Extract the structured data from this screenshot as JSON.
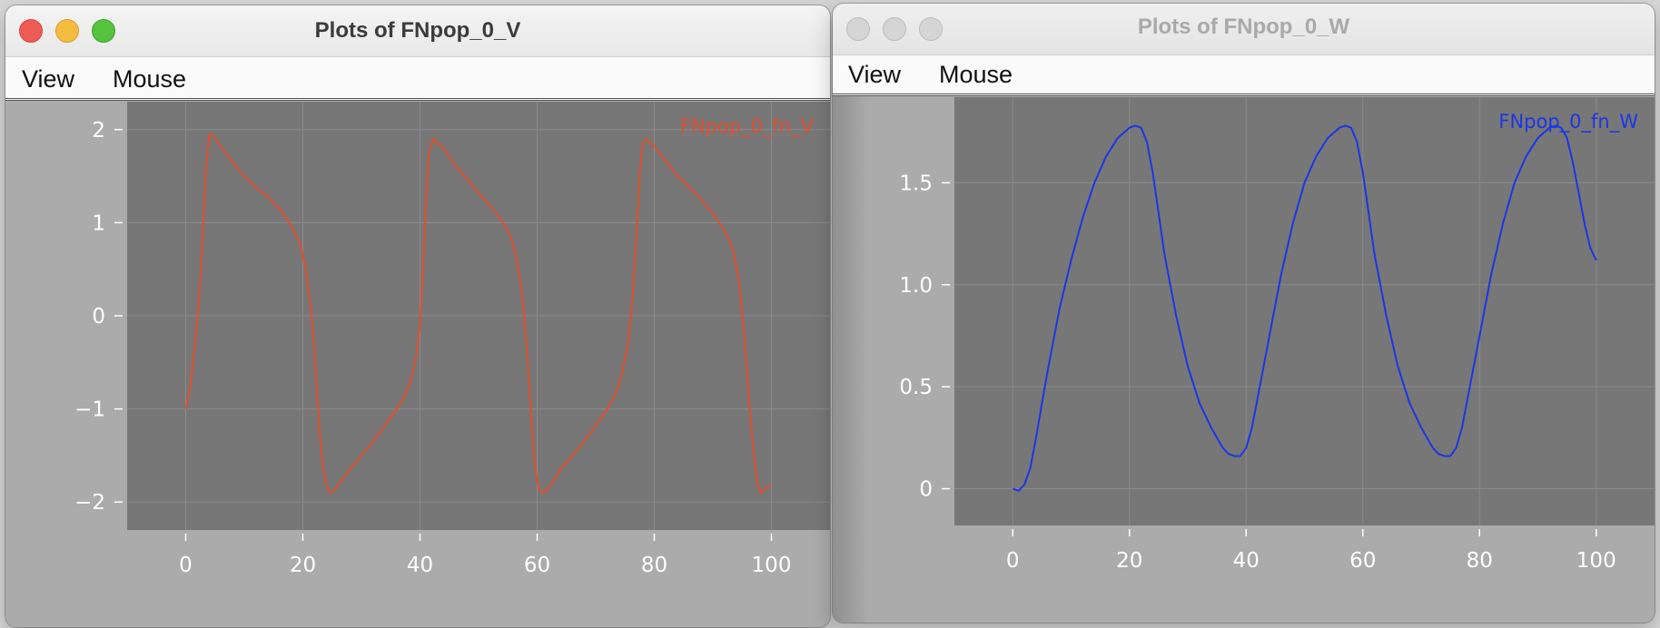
{
  "windows": [
    {
      "title": "Plots of FNpop_0_V",
      "active": true,
      "menu": [
        "View",
        "Mouse"
      ]
    },
    {
      "title": "Plots of FNpop_0_W",
      "active": false,
      "menu": [
        "View",
        "Mouse"
      ]
    }
  ],
  "colors": {
    "plot_bg": "#777777",
    "grid": "#8a8a8a",
    "axis_text": "#ffffff",
    "series_v": "#e0502f",
    "series_w": "#1a36e6"
  },
  "chart_data": [
    {
      "type": "line",
      "title": "",
      "xlabel": "",
      "ylabel": "",
      "xlim": [
        -10,
        110
      ],
      "ylim": [
        -2.3,
        2.3
      ],
      "xticks": [
        "0",
        "20",
        "40",
        "60",
        "80",
        "100"
      ],
      "xtick_values": [
        0,
        20,
        40,
        60,
        80,
        100
      ],
      "yticks": [
        "2",
        "1",
        "0",
        "−1",
        "−2"
      ],
      "ytick_values": [
        2,
        1,
        0,
        -1,
        -2
      ],
      "grid": true,
      "legend": "top-right",
      "series": [
        {
          "name": "FNpop_0_fn_V",
          "color": "#e0502f",
          "x": [
            0,
            0.8,
            1.6,
            2.4,
            3.0,
            3.5,
            4.0,
            4.6,
            6,
            8,
            10,
            12,
            14,
            16,
            18,
            19.5,
            20.5,
            21.5,
            22.2,
            22.8,
            23.4,
            24.0,
            24.6,
            25.3,
            26,
            28,
            30,
            32,
            34,
            36,
            37.5,
            38.5,
            39.3,
            40.0,
            40.5,
            41.0,
            41.5,
            42.3,
            44,
            46,
            48,
            50,
            52,
            54,
            55.5,
            56.5,
            57.5,
            58.3,
            59.0,
            59.6,
            60.2,
            60.8,
            61.5,
            62.3,
            64,
            66,
            68,
            70,
            72,
            73.5,
            74.5,
            75.5,
            76.3,
            77.0,
            77.5,
            78.0,
            78.6,
            80,
            82,
            84,
            86,
            88,
            90,
            92,
            93.5,
            94.5,
            95.5,
            96.3,
            97.0,
            97.6,
            98.2,
            99.0,
            100
          ],
          "y": [
            -1.0,
            -0.75,
            -0.3,
            0.3,
            1.0,
            1.6,
            1.95,
            1.94,
            1.82,
            1.65,
            1.5,
            1.38,
            1.28,
            1.15,
            0.97,
            0.78,
            0.5,
            0.0,
            -0.6,
            -1.2,
            -1.6,
            -1.82,
            -1.9,
            -1.88,
            -1.82,
            -1.65,
            -1.5,
            -1.35,
            -1.18,
            -1.0,
            -0.85,
            -0.68,
            -0.45,
            -0.1,
            0.5,
            1.2,
            1.75,
            1.9,
            1.8,
            1.62,
            1.47,
            1.32,
            1.18,
            1.02,
            0.85,
            0.62,
            0.2,
            -0.4,
            -1.1,
            -1.6,
            -1.85,
            -1.9,
            -1.88,
            -1.82,
            -1.65,
            -1.5,
            -1.35,
            -1.18,
            -1.0,
            -0.82,
            -0.62,
            -0.3,
            0.2,
            0.9,
            1.5,
            1.85,
            1.9,
            1.82,
            1.66,
            1.5,
            1.38,
            1.25,
            1.1,
            0.92,
            0.7,
            0.35,
            -0.3,
            -1.0,
            -1.5,
            -1.8,
            -1.9,
            -1.85,
            -1.82
          ]
        }
      ]
    },
    {
      "type": "line",
      "title": "",
      "xlabel": "",
      "ylabel": "",
      "xlim": [
        -10,
        110
      ],
      "ylim": [
        -0.18,
        1.92
      ],
      "xticks": [
        "0",
        "20",
        "40",
        "60",
        "80",
        "100"
      ],
      "xtick_values": [
        0,
        20,
        40,
        60,
        80,
        100
      ],
      "yticks": [
        "1.5",
        "1.0",
        "0.5",
        "0"
      ],
      "ytick_values": [
        1.5,
        1.0,
        0.5,
        0
      ],
      "grid": true,
      "legend": "top-right",
      "series": [
        {
          "name": "FNpop_0_fn_W",
          "color": "#1a36e6",
          "x": [
            0,
            1,
            2,
            3,
            4,
            5,
            6,
            8,
            10,
            12,
            14,
            16,
            18,
            20,
            21,
            22,
            23,
            24,
            25,
            26,
            28,
            30,
            32,
            34,
            36,
            37,
            38,
            39,
            40,
            41,
            42,
            44,
            46,
            48,
            50,
            52,
            54,
            56,
            57,
            58,
            59,
            60,
            61,
            62,
            64,
            66,
            68,
            70,
            72,
            73,
            74,
            75,
            76,
            77,
            78,
            80,
            82,
            84,
            86,
            88,
            90,
            92,
            93,
            94,
            95,
            96,
            97,
            98,
            99,
            100
          ],
          "y": [
            0.0,
            -0.01,
            0.02,
            0.1,
            0.25,
            0.42,
            0.58,
            0.88,
            1.12,
            1.33,
            1.5,
            1.63,
            1.72,
            1.77,
            1.78,
            1.77,
            1.7,
            1.55,
            1.35,
            1.15,
            0.85,
            0.6,
            0.42,
            0.3,
            0.2,
            0.17,
            0.16,
            0.16,
            0.2,
            0.3,
            0.45,
            0.75,
            1.05,
            1.3,
            1.5,
            1.63,
            1.72,
            1.77,
            1.78,
            1.77,
            1.7,
            1.55,
            1.35,
            1.15,
            0.85,
            0.6,
            0.42,
            0.3,
            0.2,
            0.17,
            0.16,
            0.16,
            0.2,
            0.3,
            0.45,
            0.75,
            1.05,
            1.3,
            1.5,
            1.63,
            1.72,
            1.77,
            1.78,
            1.77,
            1.72,
            1.6,
            1.45,
            1.3,
            1.18,
            1.12
          ]
        }
      ]
    }
  ]
}
